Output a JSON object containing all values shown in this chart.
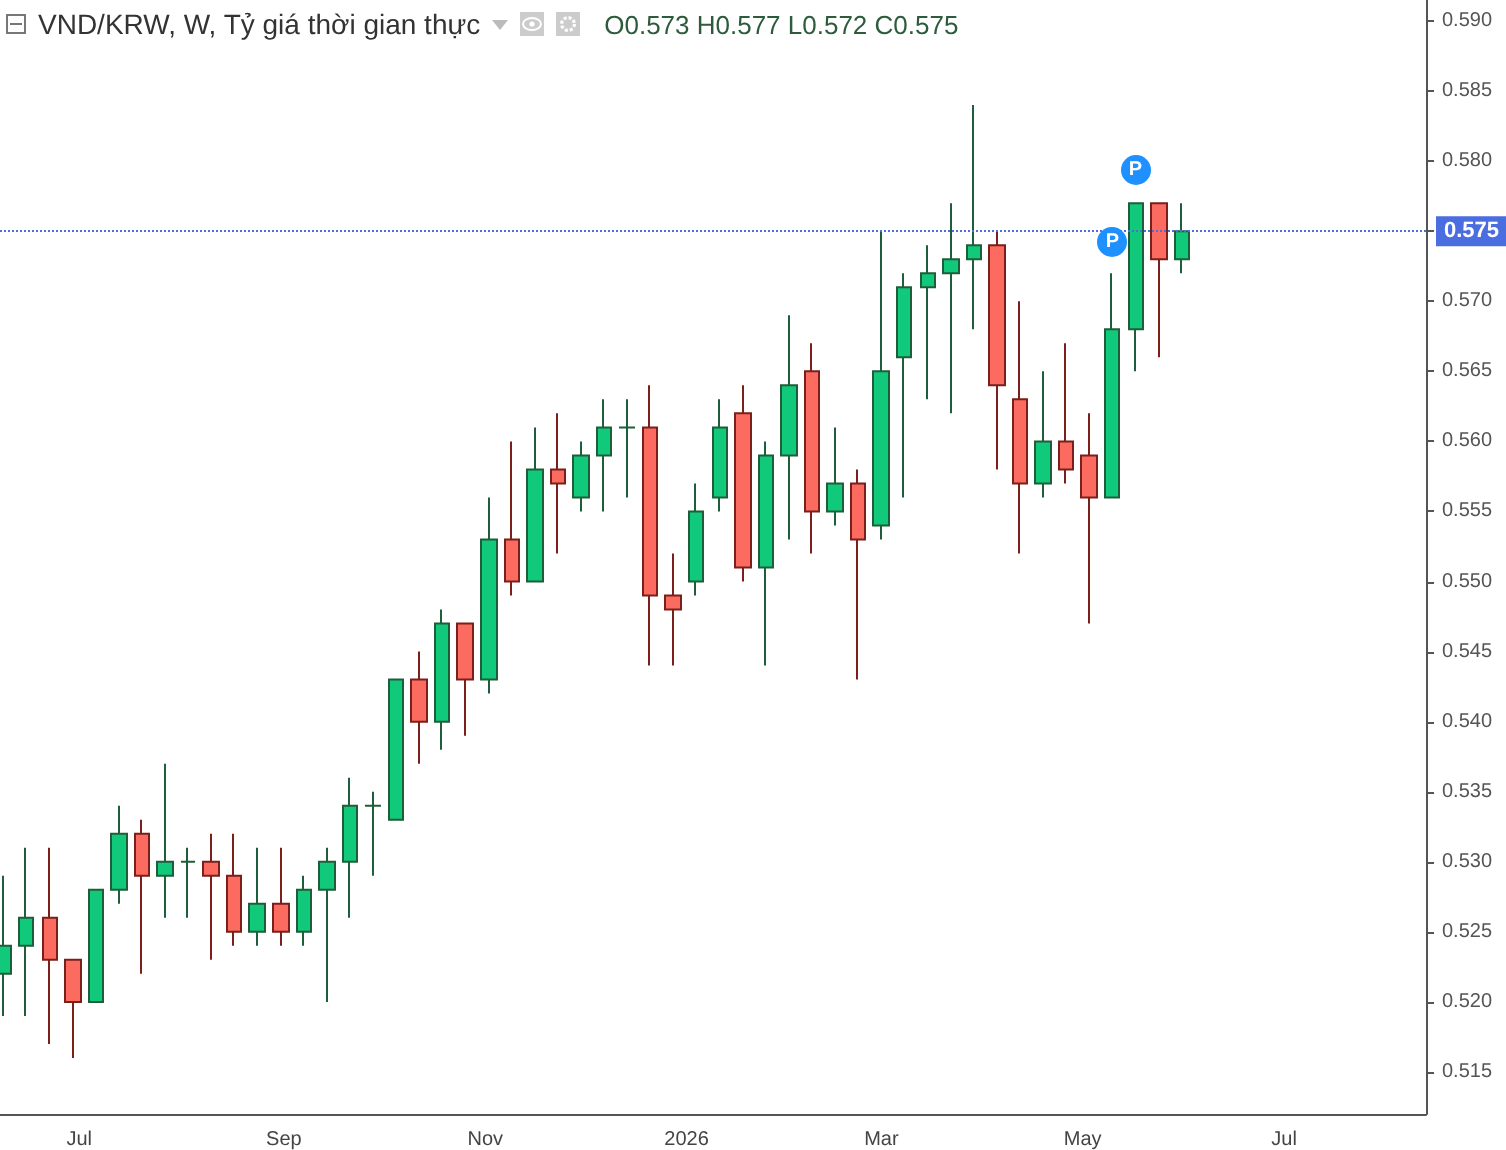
{
  "chart_data": {
    "type": "candlestick",
    "title": "VND/KRW, W, Tỷ giá thời gian thực",
    "subtitle": "O0.573 H0.577 L0.572 C0.575",
    "x": [
      "2025-06-08",
      "2025-06-15",
      "2025-06-22",
      "2025-06-29",
      "2025-07-06",
      "2025-07-13",
      "2025-07-20",
      "2025-07-27",
      "2025-08-03",
      "2025-08-10",
      "2025-08-17",
      "2025-08-24",
      "2025-08-31",
      "2025-09-07",
      "2025-09-14",
      "2025-09-21",
      "2025-09-28",
      "2025-10-05",
      "2025-10-12",
      "2025-10-19",
      "2025-10-26",
      "2025-11-02",
      "2025-11-09",
      "2025-11-16",
      "2025-11-23",
      "2025-11-30",
      "2025-12-07",
      "2025-12-14",
      "2025-12-21",
      "2025-12-28",
      "2026-01-04",
      "2026-01-11",
      "2026-01-18",
      "2026-01-25",
      "2026-02-01",
      "2026-02-08",
      "2026-02-15",
      "2026-02-22",
      "2026-03-01",
      "2026-03-08",
      "2026-03-15",
      "2026-03-22",
      "2026-03-29",
      "2026-04-05",
      "2026-04-12",
      "2026-04-19",
      "2026-04-26",
      "2026-05-03",
      "2026-05-10",
      "2026-05-17",
      "2026-05-24",
      "2026-05-31"
    ],
    "ohlc": [
      [
        0.522,
        0.529,
        0.519,
        0.524
      ],
      [
        0.524,
        0.531,
        0.519,
        0.526
      ],
      [
        0.526,
        0.531,
        0.517,
        0.523
      ],
      [
        0.523,
        0.523,
        0.516,
        0.52
      ],
      [
        0.52,
        0.528,
        0.52,
        0.528
      ],
      [
        0.528,
        0.534,
        0.527,
        0.532
      ],
      [
        0.532,
        0.533,
        0.522,
        0.529
      ],
      [
        0.529,
        0.537,
        0.526,
        0.53
      ],
      [
        0.53,
        0.531,
        0.526,
        0.53
      ],
      [
        0.53,
        0.532,
        0.523,
        0.529
      ],
      [
        0.529,
        0.532,
        0.524,
        0.525
      ],
      [
        0.525,
        0.531,
        0.524,
        0.527
      ],
      [
        0.527,
        0.531,
        0.524,
        0.525
      ],
      [
        0.525,
        0.529,
        0.524,
        0.528
      ],
      [
        0.528,
        0.531,
        0.52,
        0.53
      ],
      [
        0.53,
        0.536,
        0.526,
        0.534
      ],
      [
        0.534,
        0.535,
        0.529,
        0.534
      ],
      [
        0.533,
        0.543,
        0.533,
        0.543
      ],
      [
        0.543,
        0.545,
        0.537,
        0.54
      ],
      [
        0.54,
        0.548,
        0.538,
        0.547
      ],
      [
        0.547,
        0.547,
        0.539,
        0.543
      ],
      [
        0.543,
        0.556,
        0.542,
        0.553
      ],
      [
        0.553,
        0.56,
        0.549,
        0.55
      ],
      [
        0.55,
        0.561,
        0.55,
        0.558
      ],
      [
        0.558,
        0.562,
        0.552,
        0.557
      ],
      [
        0.556,
        0.56,
        0.555,
        0.559
      ],
      [
        0.559,
        0.563,
        0.555,
        0.561
      ],
      [
        0.561,
        0.563,
        0.556,
        0.561
      ],
      [
        0.561,
        0.564,
        0.544,
        0.549
      ],
      [
        0.549,
        0.552,
        0.544,
        0.548
      ],
      [
        0.55,
        0.557,
        0.549,
        0.555
      ],
      [
        0.556,
        0.563,
        0.555,
        0.561
      ],
      [
        0.562,
        0.564,
        0.55,
        0.551
      ],
      [
        0.551,
        0.56,
        0.544,
        0.559
      ],
      [
        0.559,
        0.569,
        0.553,
        0.564
      ],
      [
        0.565,
        0.567,
        0.552,
        0.555
      ],
      [
        0.555,
        0.561,
        0.554,
        0.557
      ],
      [
        0.557,
        0.558,
        0.543,
        0.553
      ],
      [
        0.554,
        0.575,
        0.553,
        0.565
      ],
      [
        0.566,
        0.572,
        0.556,
        0.571
      ],
      [
        0.571,
        0.574,
        0.563,
        0.572
      ],
      [
        0.572,
        0.577,
        0.562,
        0.573
      ],
      [
        0.573,
        0.584,
        0.568,
        0.574
      ],
      [
        0.574,
        0.575,
        0.558,
        0.564
      ],
      [
        0.563,
        0.57,
        0.552,
        0.557
      ],
      [
        0.557,
        0.565,
        0.556,
        0.56
      ],
      [
        0.56,
        0.567,
        0.557,
        0.558
      ],
      [
        0.559,
        0.562,
        0.547,
        0.556
      ],
      [
        0.556,
        0.572,
        0.556,
        0.568
      ],
      [
        0.568,
        0.577,
        0.565,
        0.577
      ],
      [
        0.577,
        0.577,
        0.566,
        0.573
      ],
      [
        0.573,
        0.577,
        0.572,
        0.575
      ]
    ],
    "xlim": [
      "2025-06-07",
      "2026-08-13"
    ],
    "xticks": [
      {
        "value": "2025-07-01",
        "label": "Jul"
      },
      {
        "value": "2025-09-01",
        "label": "Sep"
      },
      {
        "value": "2025-11-01",
        "label": "Nov"
      },
      {
        "value": "2026-01-01",
        "label": "2026"
      },
      {
        "value": "2026-03-01",
        "label": "Mar"
      },
      {
        "value": "2026-05-01",
        "label": "May"
      },
      {
        "value": "2026-07-01",
        "label": "Jul"
      }
    ],
    "ylim": [
      0.512,
      0.5915
    ],
    "yticks": [
      0.515,
      {
        "value": 0.52,
        "label": "0.520"
      },
      0.525,
      {
        "value": 0.53,
        "label": "0.530"
      },
      0.535,
      {
        "value": 0.54,
        "label": "0.540"
      },
      0.545,
      {
        "value": 0.55,
        "label": "0.550"
      },
      0.555,
      {
        "value": 0.56,
        "label": "0.560"
      },
      0.565,
      {
        "value": 0.57,
        "label": "0.570"
      },
      0.575,
      {
        "value": 0.58,
        "label": "0.580"
      },
      0.585,
      {
        "value": 0.59,
        "label": "0.590"
      }
    ],
    "ref_lines": [
      {
        "axis": "y",
        "value": 0.575,
        "label": "0.575",
        "color": "#4a6ee0",
        "line_style": "dotted"
      }
    ],
    "annotations": [
      {
        "text": "P",
        "x": "2026-05-10",
        "y": 0.5743
      },
      {
        "text": "P",
        "x": "2026-05-17",
        "y": 0.5794
      }
    ],
    "grid": false
  }
}
